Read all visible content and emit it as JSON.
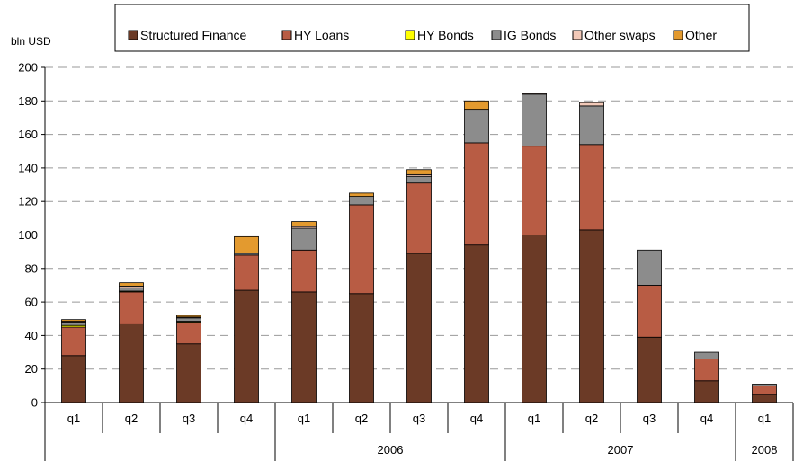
{
  "chart_data": {
    "type": "bar",
    "stacked": true,
    "ylabel": "bln USD",
    "ylim": [
      0,
      200
    ],
    "yticks": [
      0,
      20,
      40,
      60,
      80,
      100,
      120,
      140,
      160,
      180,
      200
    ],
    "grid": true,
    "legend_position": "top",
    "categories": [
      "q1",
      "q2",
      "q3",
      "q4",
      "q1",
      "q2",
      "q3",
      "q4",
      "q1",
      "q2",
      "q3",
      "q4",
      "q1"
    ],
    "year_groups": [
      {
        "label": "",
        "start": 0,
        "end": 3
      },
      {
        "label": "2006",
        "start": 4,
        "end": 7
      },
      {
        "label": "2007",
        "start": 8,
        "end": 11
      },
      {
        "label": "2008",
        "start": 12,
        "end": 12
      }
    ],
    "series": [
      {
        "name": "Structured Finance",
        "color": "#6b3a26",
        "values": [
          28,
          47,
          35,
          67,
          66,
          65,
          89,
          94,
          100,
          103,
          39,
          13,
          5
        ]
      },
      {
        "name": "HY Loans",
        "color": "#b85c44",
        "values": [
          17,
          19,
          13,
          21,
          25,
          53,
          42,
          61,
          53,
          51,
          31,
          13,
          5
        ]
      },
      {
        "name": "HY Bonds",
        "color": "#ffff00",
        "values": [
          1,
          0.5,
          0.5,
          0,
          0,
          0,
          0,
          0,
          0,
          0,
          0,
          0,
          0
        ]
      },
      {
        "name": "IG Bonds",
        "color": "#8c8c8c",
        "values": [
          2,
          2,
          2,
          1,
          13,
          5,
          4,
          20,
          31,
          23,
          21,
          4,
          1
        ]
      },
      {
        "name": "Other swaps",
        "color": "#f2c9b8",
        "values": [
          0.5,
          1,
          0.5,
          0,
          1,
          0,
          1,
          0,
          0.5,
          2,
          0,
          0,
          0
        ]
      },
      {
        "name": "Other",
        "color": "#e39a2f",
        "values": [
          1,
          2,
          1,
          10,
          3,
          2,
          3,
          5,
          0,
          0,
          0,
          0,
          0
        ]
      }
    ]
  }
}
